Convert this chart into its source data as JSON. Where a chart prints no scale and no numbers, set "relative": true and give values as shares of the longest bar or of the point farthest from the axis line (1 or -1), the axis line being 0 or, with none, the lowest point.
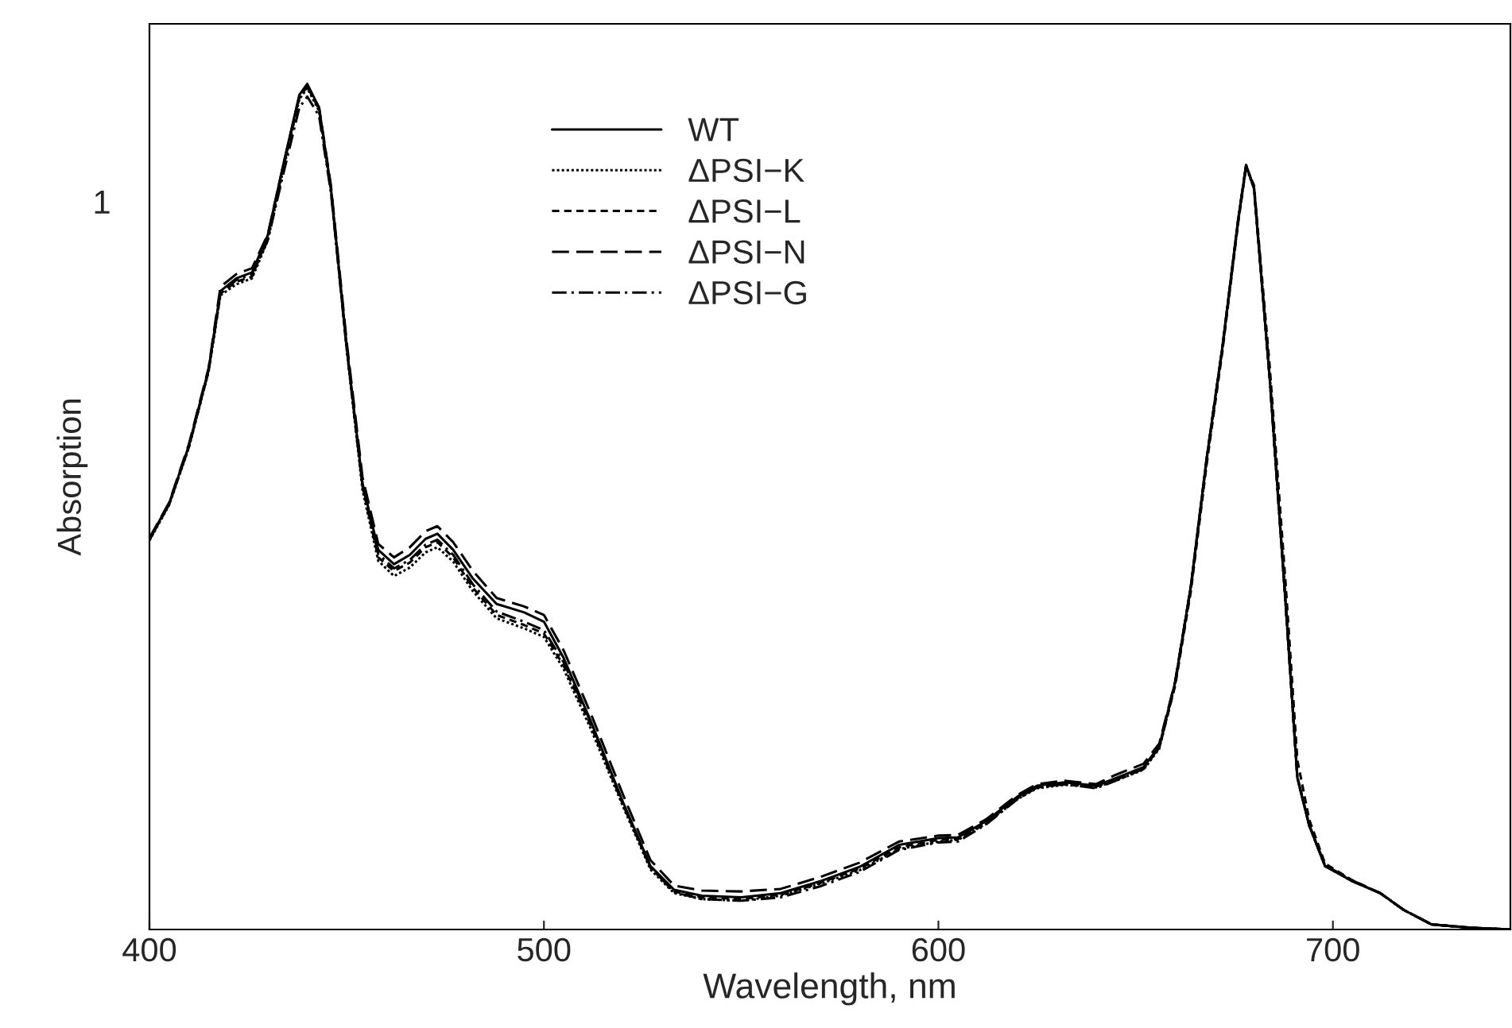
{
  "chart_data": {
    "type": "line",
    "xlabel": "Wavelength, nm",
    "ylabel": "Absorption",
    "relative": true,
    "xlim": [
      400,
      745
    ],
    "xticks": [
      400,
      500,
      600,
      700
    ],
    "grid": false,
    "legend": "top",
    "marker": "none",
    "annotations": [
      "1"
    ],
    "series": [
      {
        "name": "WT",
        "color": "#000000",
        "line_style": "solid",
        "x": [
          400,
          405,
          410,
          415,
          418,
          422,
          426,
          430,
          434,
          438,
          440,
          443,
          446,
          450,
          454,
          458,
          462,
          466,
          470,
          473,
          477,
          482,
          488,
          495,
          500,
          505,
          512,
          520,
          527,
          533,
          540,
          550,
          560,
          570,
          580,
          590,
          600,
          605,
          612,
          620,
          625,
          632,
          640,
          645,
          652,
          656,
          660,
          664,
          668,
          672,
          676,
          678,
          680,
          684,
          688,
          691,
          694,
          698,
          705,
          712,
          718,
          725,
          735,
          745
        ],
        "values": [
          0.462,
          0.504,
          0.572,
          0.662,
          0.755,
          0.77,
          0.777,
          0.821,
          0.906,
          0.987,
          1.0,
          0.972,
          0.877,
          0.689,
          0.528,
          0.449,
          0.432,
          0.443,
          0.462,
          0.468,
          0.449,
          0.415,
          0.385,
          0.375,
          0.364,
          0.321,
          0.245,
          0.151,
          0.075,
          0.047,
          0.04,
          0.038,
          0.043,
          0.057,
          0.074,
          0.1,
          0.108,
          0.109,
          0.128,
          0.157,
          0.17,
          0.174,
          0.17,
          0.179,
          0.192,
          0.217,
          0.292,
          0.406,
          0.557,
          0.689,
          0.84,
          0.904,
          0.877,
          0.651,
          0.387,
          0.179,
          0.123,
          0.075,
          0.057,
          0.043,
          0.023,
          0.006,
          0.002,
          0.0
        ]
      },
      {
        "name": "ΔPSI−K",
        "color": "#000000",
        "line_style": "dotted",
        "x": [
          400,
          405,
          410,
          415,
          418,
          422,
          426,
          430,
          434,
          438,
          440,
          443,
          446,
          450,
          454,
          458,
          462,
          466,
          470,
          473,
          477,
          482,
          488,
          495,
          500,
          505,
          512,
          520,
          527,
          533,
          540,
          550,
          560,
          570,
          580,
          590,
          600,
          605,
          612,
          620,
          625,
          632,
          640,
          645,
          652,
          656,
          660,
          664,
          668,
          672,
          676,
          678,
          680,
          684,
          688,
          691,
          694,
          698,
          705,
          712,
          718,
          725,
          735,
          745
        ],
        "values": [
          0.46,
          0.502,
          0.57,
          0.66,
          0.75,
          0.763,
          0.77,
          0.815,
          0.9,
          0.982,
          0.995,
          0.968,
          0.874,
          0.686,
          0.52,
          0.436,
          0.418,
          0.428,
          0.446,
          0.452,
          0.435,
          0.4,
          0.368,
          0.356,
          0.346,
          0.308,
          0.236,
          0.146,
          0.071,
          0.043,
          0.036,
          0.034,
          0.04,
          0.054,
          0.07,
          0.095,
          0.104,
          0.106,
          0.125,
          0.154,
          0.167,
          0.171,
          0.168,
          0.176,
          0.189,
          0.214,
          0.29,
          0.404,
          0.555,
          0.688,
          0.838,
          0.902,
          0.876,
          0.65,
          0.386,
          0.179,
          0.123,
          0.075,
          0.057,
          0.043,
          0.023,
          0.006,
          0.002,
          0.0
        ]
      },
      {
        "name": "ΔPSI−L",
        "color": "#000000",
        "line_style": "dashed",
        "x": [
          400,
          405,
          410,
          415,
          418,
          422,
          426,
          430,
          434,
          438,
          440,
          443,
          446,
          450,
          454,
          458,
          462,
          466,
          470,
          473,
          477,
          482,
          488,
          495,
          500,
          505,
          512,
          520,
          527,
          533,
          540,
          550,
          560,
          570,
          580,
          590,
          600,
          605,
          612,
          620,
          625,
          632,
          640,
          645,
          652,
          656,
          660,
          664,
          668,
          672,
          676,
          678,
          680,
          684,
          688,
          691,
          694,
          698,
          705,
          712,
          718,
          725,
          735,
          745
        ],
        "values": [
          0.461,
          0.503,
          0.571,
          0.661,
          0.752,
          0.766,
          0.772,
          0.818,
          0.903,
          0.984,
          0.997,
          0.97,
          0.876,
          0.688,
          0.524,
          0.44,
          0.424,
          0.434,
          0.452,
          0.458,
          0.44,
          0.404,
          0.372,
          0.36,
          0.35,
          0.312,
          0.24,
          0.148,
          0.073,
          0.045,
          0.038,
          0.036,
          0.041,
          0.055,
          0.072,
          0.097,
          0.106,
          0.107,
          0.126,
          0.155,
          0.168,
          0.172,
          0.169,
          0.177,
          0.19,
          0.215,
          0.288,
          0.4,
          0.55,
          0.684,
          0.836,
          0.902,
          0.88,
          0.665,
          0.41,
          0.2,
          0.13,
          0.078,
          0.058,
          0.043,
          0.023,
          0.006,
          0.002,
          0.0
        ]
      },
      {
        "name": "ΔPSI−N",
        "color": "#000000",
        "line_style": "longdash",
        "x": [
          400,
          405,
          410,
          415,
          418,
          422,
          426,
          430,
          434,
          438,
          440,
          443,
          446,
          450,
          454,
          458,
          462,
          466,
          470,
          473,
          477,
          482,
          488,
          495,
          500,
          505,
          512,
          520,
          527,
          533,
          540,
          550,
          560,
          570,
          580,
          590,
          600,
          605,
          612,
          620,
          625,
          632,
          640,
          645,
          652,
          656,
          660,
          664,
          668,
          672,
          676,
          678,
          680,
          684,
          688,
          691,
          694,
          698,
          705,
          712,
          718,
          725,
          735,
          745
        ],
        "values": [
          0.463,
          0.505,
          0.574,
          0.664,
          0.76,
          0.775,
          0.782,
          0.822,
          0.905,
          0.985,
          0.997,
          0.972,
          0.88,
          0.695,
          0.535,
          0.456,
          0.44,
          0.452,
          0.471,
          0.477,
          0.458,
          0.424,
          0.392,
          0.382,
          0.372,
          0.33,
          0.254,
          0.16,
          0.082,
          0.052,
          0.046,
          0.045,
          0.048,
          0.062,
          0.079,
          0.104,
          0.111,
          0.112,
          0.13,
          0.159,
          0.172,
          0.176,
          0.172,
          0.183,
          0.196,
          0.22,
          0.293,
          0.406,
          0.557,
          0.689,
          0.84,
          0.904,
          0.877,
          0.652,
          0.388,
          0.18,
          0.124,
          0.076,
          0.058,
          0.043,
          0.023,
          0.006,
          0.002,
          0.0
        ]
      },
      {
        "name": "ΔPSI−G",
        "color": "#000000",
        "line_style": "dashdot",
        "x": [
          400,
          405,
          410,
          415,
          418,
          422,
          426,
          430,
          434,
          438,
          440,
          443,
          446,
          450,
          454,
          458,
          462,
          466,
          470,
          473,
          477,
          482,
          488,
          495,
          500,
          505,
          512,
          520,
          527,
          533,
          540,
          550,
          560,
          570,
          580,
          590,
          600,
          605,
          612,
          620,
          625,
          632,
          640,
          645,
          652,
          656,
          660,
          664,
          668,
          672,
          676,
          678,
          680,
          684,
          688,
          691,
          694,
          698,
          705,
          712,
          718,
          725,
          735,
          745
        ],
        "values": [
          0.461,
          0.503,
          0.571,
          0.661,
          0.753,
          0.768,
          0.775,
          0.815,
          0.895,
          0.972,
          0.985,
          0.962,
          0.872,
          0.688,
          0.526,
          0.444,
          0.427,
          0.437,
          0.455,
          0.461,
          0.443,
          0.408,
          0.376,
          0.364,
          0.354,
          0.316,
          0.244,
          0.15,
          0.074,
          0.044,
          0.036,
          0.034,
          0.038,
          0.051,
          0.068,
          0.094,
          0.103,
          0.104,
          0.124,
          0.154,
          0.168,
          0.172,
          0.167,
          0.176,
          0.19,
          0.216,
          0.291,
          0.405,
          0.556,
          0.688,
          0.839,
          0.903,
          0.877,
          0.651,
          0.387,
          0.179,
          0.123,
          0.075,
          0.057,
          0.043,
          0.023,
          0.006,
          0.002,
          0.0
        ]
      }
    ]
  }
}
